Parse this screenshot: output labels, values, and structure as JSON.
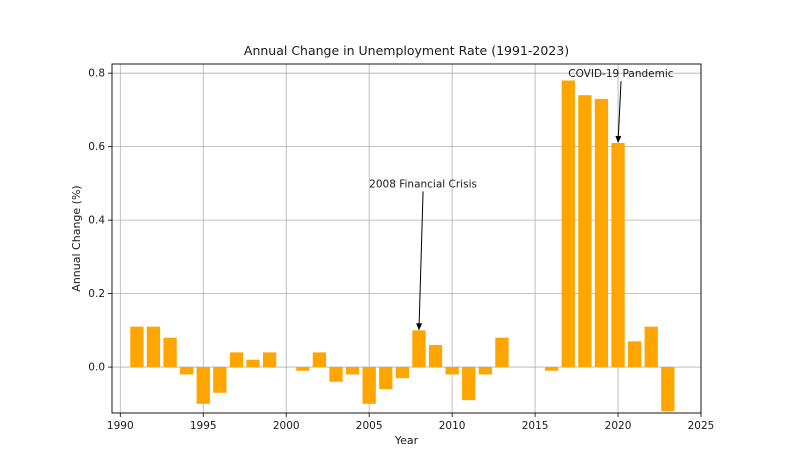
{
  "chart_data": {
    "type": "bar",
    "title": "Annual Change in Unemployment Rate (1991-2023)",
    "xlabel": "Year",
    "ylabel": "Annual Change (%)",
    "xlim": [
      1989.5,
      2025
    ],
    "ylim": [
      -0.125,
      0.825
    ],
    "xticks": [
      1990,
      1995,
      2000,
      2005,
      2010,
      2015,
      2020,
      2025
    ],
    "xtick_labels": [
      "1990",
      "1995",
      "2000",
      "2005",
      "2010",
      "2015",
      "2020",
      "2025"
    ],
    "yticks": [
      0.0,
      0.2,
      0.4,
      0.6,
      0.8
    ],
    "ytick_labels": [
      "0.0",
      "0.2",
      "0.4",
      "0.6",
      "0.8"
    ],
    "grid": true,
    "bar_color": "#FFA500",
    "bar_width": 0.8,
    "x": [
      1991,
      1992,
      1993,
      1994,
      1995,
      1996,
      1997,
      1998,
      1999,
      2000,
      2001,
      2002,
      2003,
      2004,
      2005,
      2006,
      2007,
      2008,
      2009,
      2010,
      2011,
      2012,
      2013,
      2014,
      2015,
      2016,
      2017,
      2018,
      2019,
      2020,
      2021,
      2022,
      2023
    ],
    "values": [
      0.11,
      0.11,
      0.08,
      -0.02,
      -0.1,
      -0.07,
      0.04,
      0.02,
      0.04,
      0.0,
      -0.01,
      0.04,
      -0.04,
      -0.02,
      -0.1,
      -0.06,
      -0.03,
      0.1,
      0.06,
      -0.02,
      -0.09,
      -0.02,
      0.08,
      0.0,
      0.0,
      -0.01,
      0.78,
      0.74,
      0.73,
      0.61,
      0.07,
      0.11,
      -0.12
    ],
    "annotations": [
      {
        "text": "2008 Financial Crisis",
        "point": [
          2008,
          0.1
        ],
        "text_pos": [
          2005,
          0.5
        ]
      },
      {
        "text": "COVID-19 Pandemic",
        "point": [
          2020,
          0.61
        ],
        "text_pos": [
          2017,
          0.8
        ]
      }
    ]
  }
}
